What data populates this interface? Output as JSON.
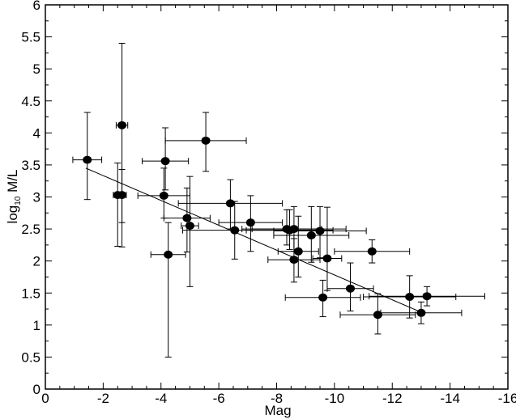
{
  "chart_data": {
    "type": "scatter",
    "title": "",
    "xlabel": "Mag",
    "ylabel_prefix": "log",
    "ylabel_sub": "10",
    "ylabel_suffix": " M/L",
    "xlim": [
      0,
      -16
    ],
    "ylim": [
      0,
      6
    ],
    "x_ticks": [
      0,
      -2,
      -4,
      -6,
      -8,
      -10,
      -12,
      -14,
      -16
    ],
    "x_tick_labels": [
      "0",
      "-2",
      "-4",
      "-6",
      "-8",
      "-10",
      "-12",
      "-14",
      "-16"
    ],
    "y_ticks": [
      0,
      0.5,
      1,
      1.5,
      2,
      2.5,
      3,
      3.5,
      4,
      4.5,
      5,
      5.5,
      6
    ],
    "y_tick_labels": [
      "0",
      "0.5",
      "1",
      "1.5",
      "2",
      "2.5",
      "3",
      "3.5",
      "4",
      "4.5",
      "5",
      "5.5",
      "6"
    ],
    "grid": false,
    "fit_line": {
      "x": [
        -1.4,
        -13.0
      ],
      "y": [
        3.45,
        1.2
      ]
    },
    "points": [
      {
        "x": -1.45,
        "y": 3.58,
        "xerr": 0.5,
        "yerr_up": 0.74,
        "yerr_down": 0.62
      },
      {
        "x": -2.5,
        "y": 3.03,
        "xerr": 0.15,
        "yerr_up": 0.5,
        "yerr_down": 0.8
      },
      {
        "x": -2.65,
        "y": 3.03,
        "xerr": 0.15,
        "yerr_up": 0.4,
        "yerr_down": 0.43
      },
      {
        "x": -2.65,
        "y": 4.12,
        "xerr": 0.2,
        "yerr_up": 1.28,
        "yerr_down": 1.9
      },
      {
        "x": -4.1,
        "y": 3.02,
        "xerr": 0.9,
        "yerr_up": 0.43,
        "yerr_down": 0.35
      },
      {
        "x": -4.15,
        "y": 3.56,
        "xerr": 0.8,
        "yerr_up": 0.52,
        "yerr_down": 0.45
      },
      {
        "x": -4.25,
        "y": 2.1,
        "xerr": 0.6,
        "yerr_up": 0.5,
        "yerr_down": 1.6
      },
      {
        "x": -4.9,
        "y": 2.67,
        "xerr": 0.8,
        "yerr_up": 0.47,
        "yerr_down": 0.53
      },
      {
        "x": -5.0,
        "y": 2.55,
        "xerr": 0.3,
        "yerr_up": 0.77,
        "yerr_down": 0.95
      },
      {
        "x": -5.55,
        "y": 3.88,
        "xerr": 1.4,
        "yerr_up": 0.44,
        "yerr_down": 0.48
      },
      {
        "x": -6.4,
        "y": 2.9,
        "xerr": 1.8,
        "yerr_up": 0.37,
        "yerr_down": 0.4
      },
      {
        "x": -6.55,
        "y": 2.48,
        "xerr": 1.8,
        "yerr_up": 0.45,
        "yerr_down": 0.45
      },
      {
        "x": -7.1,
        "y": 2.6,
        "xerr": 1.1,
        "yerr_up": 0.42,
        "yerr_down": 0.45
      },
      {
        "x": -8.35,
        "y": 2.5,
        "xerr": 1.2,
        "yerr_up": 0.3,
        "yerr_down": 0.25
      },
      {
        "x": -8.45,
        "y": 2.48,
        "xerr": 1.5,
        "yerr_up": 0.32,
        "yerr_down": 0.3
      },
      {
        "x": -8.6,
        "y": 2.5,
        "xerr": 1.8,
        "yerr_up": 0.35,
        "yerr_down": 0.35
      },
      {
        "x": -8.6,
        "y": 2.02,
        "xerr": 0.9,
        "yerr_up": 0.33,
        "yerr_down": 0.35
      },
      {
        "x": -8.75,
        "y": 2.15,
        "xerr": 0.7,
        "yerr_up": 0.55,
        "yerr_down": 0.4
      },
      {
        "x": -9.2,
        "y": 2.4,
        "xerr": 1.3,
        "yerr_up": 0.45,
        "yerr_down": 0.42
      },
      {
        "x": -9.5,
        "y": 2.47,
        "xerr": 1.6,
        "yerr_up": 0.38,
        "yerr_down": 0.42
      },
      {
        "x": -9.6,
        "y": 1.43,
        "xerr": 1.3,
        "yerr_up": 0.27,
        "yerr_down": 0.3
      },
      {
        "x": -9.75,
        "y": 2.04,
        "xerr": 0.5,
        "yerr_up": 0.8,
        "yerr_down": 0.5
      },
      {
        "x": -10.55,
        "y": 1.57,
        "xerr": 0.8,
        "yerr_up": 0.4,
        "yerr_down": 0.35
      },
      {
        "x": -11.3,
        "y": 2.15,
        "xerr": 1.3,
        "yerr_up": 0.18,
        "yerr_down": 0.18
      },
      {
        "x": -11.5,
        "y": 1.16,
        "xerr": 1.3,
        "yerr_up": 0.33,
        "yerr_down": 0.3
      },
      {
        "x": -12.6,
        "y": 1.44,
        "xerr": 1.6,
        "yerr_up": 0.33,
        "yerr_down": 0.33
      },
      {
        "x": -13.0,
        "y": 1.19,
        "xerr": 1.4,
        "yerr_up": 0.17,
        "yerr_down": 0.17
      },
      {
        "x": -13.2,
        "y": 1.45,
        "xerr": 2.0,
        "yerr_up": 0.15,
        "yerr_down": 0.15
      }
    ],
    "colors": {
      "marker": "#000000",
      "line": "#000000",
      "background": "#ffffff"
    }
  }
}
